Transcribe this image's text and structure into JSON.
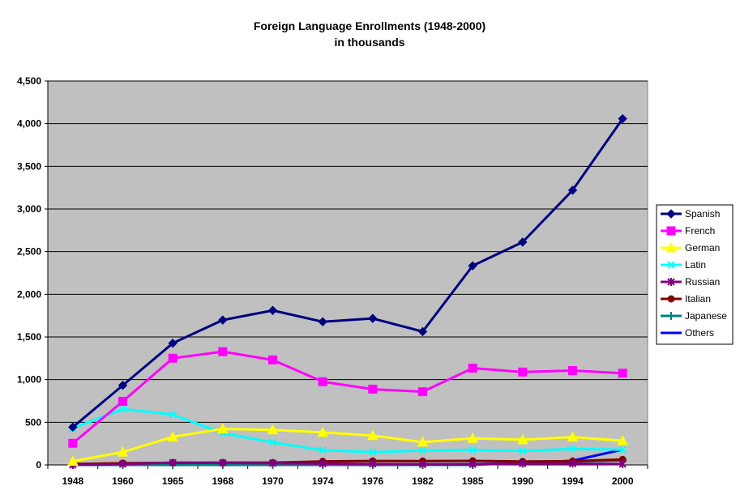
{
  "chart_data": {
    "type": "line",
    "title": "Foreign Language Enrollments (1948-2000)",
    "subtitle": "in thousands",
    "xlabel": "",
    "ylabel": "",
    "categories": [
      "1948",
      "1960",
      "1965",
      "1968",
      "1970",
      "1974",
      "1976",
      "1982",
      "1985",
      "1990",
      "1994",
      "2000"
    ],
    "ylim": [
      0,
      4500
    ],
    "yticks": [
      0,
      500,
      1000,
      1500,
      2000,
      2500,
      3000,
      3500,
      4000,
      4500
    ],
    "ytick_labels": [
      "0",
      "500",
      "1,000",
      "1,500",
      "2,000",
      "2,500",
      "3,000",
      "3,500",
      "4,000",
      "4,500"
    ],
    "grid": "horizontal",
    "legend_position": "right",
    "plot_background": "#c0c0c0",
    "series": [
      {
        "name": "Spanish",
        "color": "#000080",
        "marker": "diamond",
        "values": [
          443,
          933,
          1427,
          1698,
          1811,
          1678,
          1717,
          1563,
          2334,
          2612,
          3220,
          4058
        ]
      },
      {
        "name": "French",
        "color": "#ff00ff",
        "marker": "square",
        "values": [
          254,
          745,
          1251,
          1328,
          1231,
          975,
          888,
          858,
          1134,
          1089,
          1106,
          1075
        ]
      },
      {
        "name": "German",
        "color": "#ffff00",
        "marker": "triangle",
        "values": [
          43,
          151,
          328,
          423,
          411,
          381,
          344,
          267,
          312,
          295,
          326,
          283
        ]
      },
      {
        "name": "Latin",
        "color": "#00ffff",
        "marker": "x",
        "values": [
          429,
          655,
          591,
          372,
          265,
          173,
          150,
          169,
          177,
          163,
          189,
          178
        ]
      },
      {
        "name": "Russian",
        "color": "#800080",
        "marker": "star",
        "values": [
          0,
          10,
          27,
          24,
          20,
          15,
          11,
          6,
          7,
          16,
          16,
          10
        ]
      },
      {
        "name": "Italian",
        "color": "#800000",
        "marker": "circle",
        "values": [
          11,
          20,
          25,
          27,
          27,
          41,
          46,
          45,
          47,
          40,
          44,
          64
        ]
      },
      {
        "name": "Japanese",
        "color": "#008080",
        "marker": "plus",
        "values": [
          0,
          0,
          0,
          0,
          0,
          0,
          0,
          0,
          0,
          25,
          43,
          51
        ]
      },
      {
        "name": "Others",
        "color": "#0000ff",
        "marker": "none",
        "values": [
          0,
          2,
          3,
          4,
          4,
          5,
          5,
          7,
          10,
          20,
          50,
          180
        ]
      }
    ]
  }
}
